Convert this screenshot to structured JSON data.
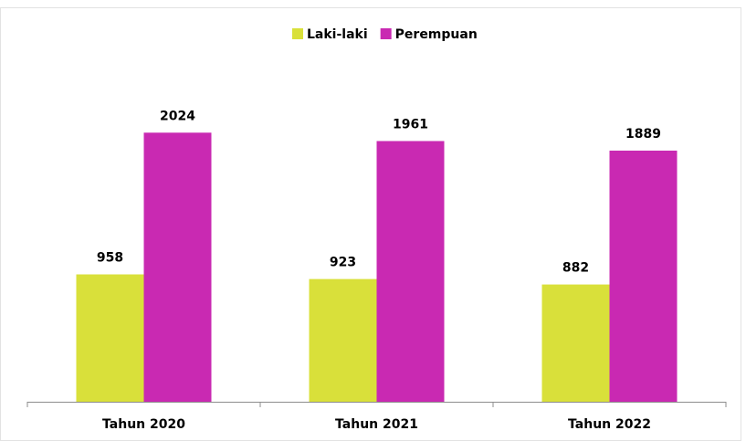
{
  "chart_data": {
    "type": "bar",
    "categories": [
      "Tahun 2020",
      "Tahun 2021",
      "Tahun 2022"
    ],
    "series": [
      {
        "name": "Laki-laki",
        "color": "#d9e03a",
        "values": [
          958,
          923,
          882
        ]
      },
      {
        "name": "Perempuan",
        "color": "#c929b2",
        "values": [
          2024,
          1961,
          1889
        ]
      }
    ],
    "ylim": [
      0,
      2500
    ],
    "legend": "top"
  }
}
